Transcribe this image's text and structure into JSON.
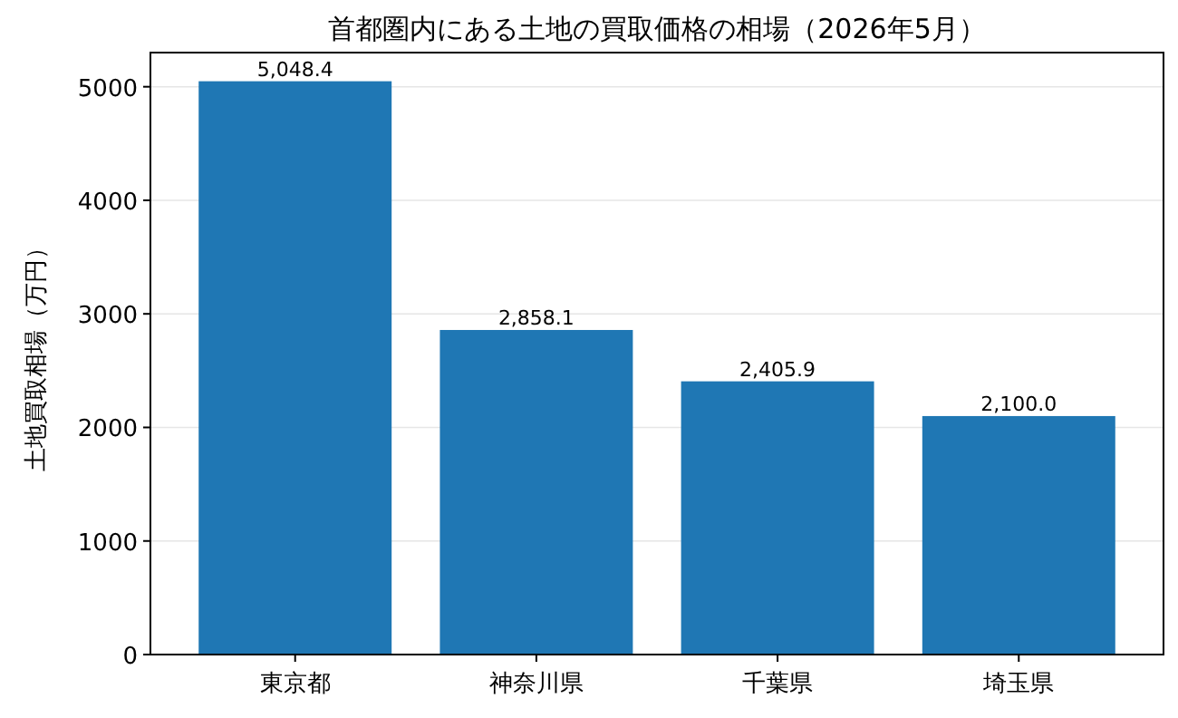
{
  "chart_data": {
    "type": "bar",
    "title": "首都圏内にある土地の買取価格の相場（2026年5月）",
    "ylabel": "土地買取相場（万円）",
    "categories": [
      "東京都",
      "神奈川県",
      "千葉県",
      "埼玉県"
    ],
    "values": [
      5048.4,
      2858.1,
      2405.9,
      2100.0
    ],
    "value_labels": [
      "5,048.4",
      "2,858.1",
      "2,405.9",
      "2,100.0"
    ],
    "color": "#1f77b4",
    "ylim": [
      0,
      5300.8
    ],
    "yticks": [
      0,
      1000,
      2000,
      3000,
      4000,
      5000
    ],
    "grid": "y"
  }
}
